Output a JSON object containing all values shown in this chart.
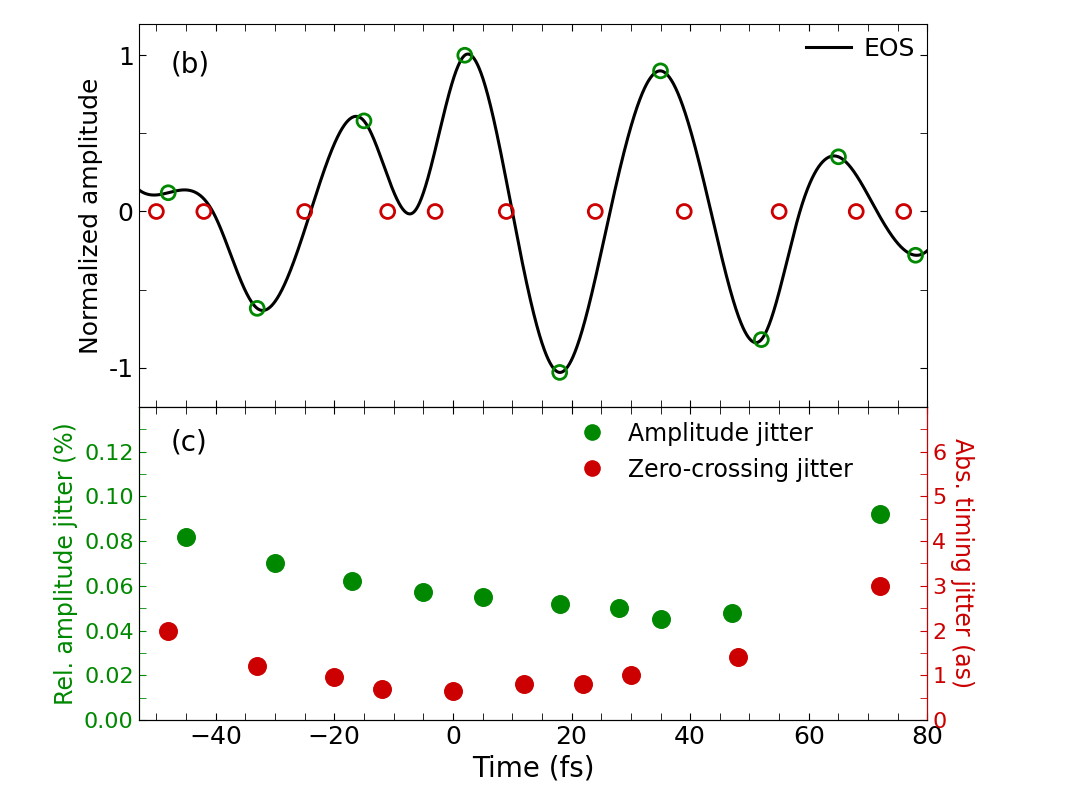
{
  "top_panel": {
    "label": "(b)",
    "ylabel": "Normalized amplitude",
    "ylim": [
      -1.25,
      1.2
    ],
    "yticks": [
      -1,
      0,
      1
    ],
    "xlim": [
      -53,
      80
    ],
    "legend_label": "EOS",
    "green_markers_x": [
      -48,
      -33,
      -15,
      2,
      18,
      35,
      52,
      65,
      78
    ],
    "green_markers_y": [
      0.12,
      -0.62,
      0.58,
      1.0,
      -1.03,
      0.9,
      -0.82,
      0.35,
      -0.28
    ],
    "red_markers_x": [
      -50,
      -42,
      -25,
      -11,
      -3,
      9,
      24,
      39,
      55,
      68,
      76
    ],
    "red_markers_y": [
      0.0,
      0.0,
      0.0,
      0.0,
      0.0,
      0.0,
      0.0,
      0.0,
      0.0,
      0.0,
      0.0
    ]
  },
  "bottom_panel": {
    "label": "(c)",
    "ylabel_left": "Rel. amplitude jitter (%)",
    "ylabel_right": "Abs. timing jitter (as)",
    "ylim_left": [
      0.0,
      0.14
    ],
    "ylim_right": [
      0,
      7
    ],
    "yticks_left": [
      0.0,
      0.02,
      0.04,
      0.06,
      0.08,
      0.1,
      0.12
    ],
    "yticks_right": [
      0,
      1,
      2,
      3,
      4,
      5,
      6
    ],
    "xlabel": "Time (fs)",
    "xlim": [
      -53,
      80
    ],
    "xticks": [
      -40,
      -20,
      0,
      20,
      40,
      60
    ],
    "green_data_x": [
      -45,
      -30,
      -17,
      -5,
      5,
      18,
      28,
      35,
      47,
      72
    ],
    "green_data_y": [
      0.082,
      0.07,
      0.062,
      0.057,
      0.055,
      0.052,
      0.05,
      0.045,
      0.048,
      0.092
    ],
    "red_data_x": [
      -48,
      -33,
      -20,
      -12,
      0,
      12,
      22,
      30,
      48,
      72
    ],
    "red_data_y": [
      0.04,
      0.024,
      0.019,
      0.014,
      0.013,
      0.016,
      0.016,
      0.02,
      0.028,
      0.06
    ]
  },
  "colors": {
    "green": "#008800",
    "red": "#CC0000",
    "black": "#000000",
    "background": "#FFFFFF"
  },
  "fig_width": 10.66,
  "fig_height": 8.0,
  "dpi": 100
}
